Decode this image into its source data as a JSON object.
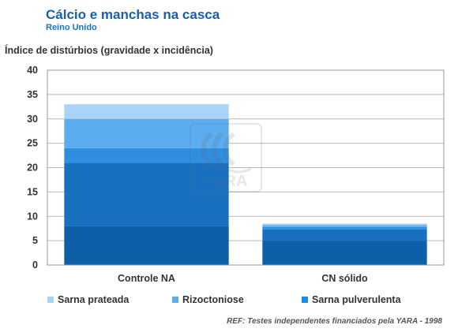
{
  "header": {
    "title": "Cálcio e manchas na casca",
    "subtitle": "Reino Unido"
  },
  "footer": {
    "reference": "REF: Testes independentes financiados pela YARA - 1998"
  },
  "watermark": {
    "text": "YARA"
  },
  "chart_data": {
    "type": "bar",
    "stacked": true,
    "title": "Cálcio e manchas na casca",
    "subtitle": "Reino Unido",
    "xlabel": "",
    "ylabel": "Índice de distúrbios (gravidade x incidência)",
    "ylim": [
      0,
      40
    ],
    "yticks": [
      0,
      5,
      10,
      15,
      20,
      25,
      30,
      35,
      40
    ],
    "grid": true,
    "legend_position": "bottom",
    "categories": [
      "Controle NA",
      "CN sólido"
    ],
    "series": [
      {
        "name": "Sarna pulverulenta",
        "color": "#0d5fa8",
        "values": [
          8,
          5
        ]
      },
      {
        "name": "",
        "color": "#1a70c0",
        "values": [
          13,
          2.3
        ]
      },
      {
        "name": "",
        "color": "#2e8ee0",
        "values": [
          3,
          0.5
        ]
      },
      {
        "name": "Rizoctoniose",
        "color": "#5cacf0",
        "values": [
          6,
          0.4
        ]
      },
      {
        "name": "Sarna prateada",
        "color": "#a9d3f7",
        "values": [
          3,
          0.3
        ]
      }
    ],
    "legend_items": [
      {
        "label": "Sarna prateada",
        "color": "#a9d3f7"
      },
      {
        "label": "Rizoctoniose",
        "color": "#5cacf0"
      },
      {
        "label": "Sarna pulverulenta",
        "color": "#1a8ce8"
      }
    ]
  }
}
